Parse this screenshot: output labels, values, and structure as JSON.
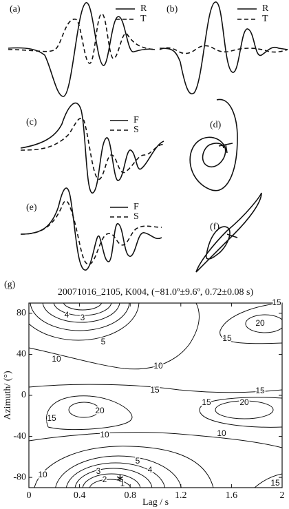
{
  "chart_data": [
    {
      "type": "waveform",
      "label": "(a)",
      "series": [
        {
          "name": "R"
        },
        {
          "name": "T"
        }
      ]
    },
    {
      "type": "waveform",
      "label": "(b)",
      "series": [
        {
          "name": "R"
        },
        {
          "name": "T"
        }
      ]
    },
    {
      "type": "waveform",
      "label": "(c)",
      "series": [
        {
          "name": "F"
        },
        {
          "name": "S"
        }
      ]
    },
    {
      "type": "particle-motion",
      "label": "(d)"
    },
    {
      "type": "waveform",
      "label": "(e)",
      "series": [
        {
          "name": "F"
        },
        {
          "name": "S"
        }
      ]
    },
    {
      "type": "particle-motion",
      "label": "(f)"
    },
    {
      "type": "contour",
      "label": "(g)",
      "title": "20071016_2105, K004, (−81.0º±9.6º,  0.72±0.08 s)",
      "xlabel": "Lag / s",
      "ylabel": "Azimuth/ (°)",
      "xlim": [
        0,
        2
      ],
      "ylim": [
        -90,
        90
      ],
      "xticks": [
        0,
        0.4,
        0.8,
        1.2,
        1.6,
        2
      ],
      "yticks": [
        -80,
        -40,
        0,
        40,
        80
      ],
      "contour_labels": [
        4,
        3,
        5,
        10,
        10,
        20,
        15,
        15,
        15,
        15,
        20,
        20,
        15,
        15,
        10,
        10,
        5,
        4,
        3,
        2,
        1,
        15,
        10
      ],
      "points": [
        {
          "x": 0.72,
          "y": -81
        }
      ]
    }
  ]
}
